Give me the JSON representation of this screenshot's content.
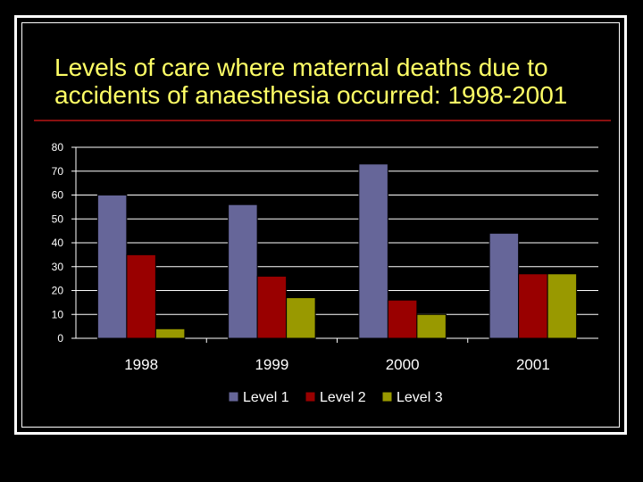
{
  "slide": {
    "title": "Levels of care where maternal deaths due to accidents  of anaesthesia occurred: 1998-2001"
  },
  "chart_data": {
    "type": "bar",
    "title": "",
    "xlabel": "",
    "ylabel": "",
    "categories": [
      "1998",
      "1999",
      "2000",
      "2001"
    ],
    "series": [
      {
        "name": "Level 1",
        "values": [
          60,
          56,
          73,
          44
        ],
        "color": "#666699"
      },
      {
        "name": "Level 2",
        "values": [
          35,
          26,
          16,
          27
        ],
        "color": "#990000"
      },
      {
        "name": "Level 3",
        "values": [
          4,
          17,
          10,
          27
        ],
        "color": "#999900"
      }
    ],
    "ylim": [
      0,
      80
    ],
    "yticks": [
      "0",
      "10",
      "20",
      "30",
      "40",
      "50",
      "60",
      "70",
      "80"
    ],
    "grid": true,
    "legend": "bottom"
  }
}
